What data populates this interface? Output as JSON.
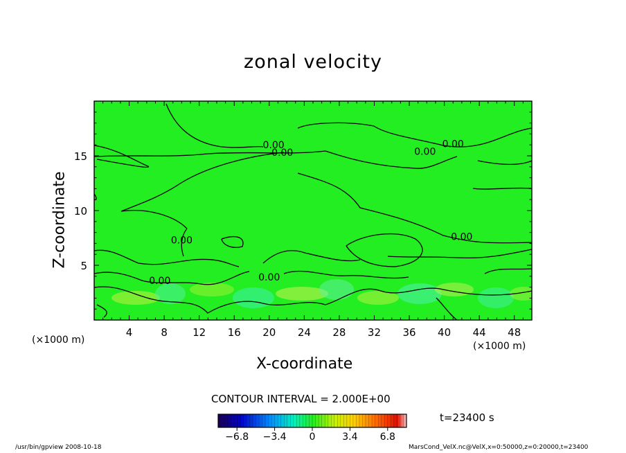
{
  "chart_data": {
    "type": "contour",
    "title": "zonal velocity",
    "xlabel": "X-coordinate",
    "ylabel": "Z-coordinate",
    "x_units": "(×1000 m)",
    "y_units": "(×1000 m)",
    "xlim": [
      0,
      50
    ],
    "ylim": [
      0,
      20
    ],
    "x_ticks": [
      4,
      8,
      12,
      16,
      20,
      24,
      28,
      32,
      36,
      40,
      44,
      48
    ],
    "y_ticks": [
      5,
      10,
      15
    ],
    "contour_labels": [
      {
        "text": "0.00",
        "x": 20.5,
        "y": 15.7
      },
      {
        "text": "0.00",
        "x": 21.5,
        "y": 15.0
      },
      {
        "text": "0.00",
        "x": 37.8,
        "y": 15.1
      },
      {
        "text": "0.00",
        "x": 41.0,
        "y": 15.8
      },
      {
        "text": "0.00",
        "x": 42.0,
        "y": 7.3
      },
      {
        "text": "0.00",
        "x": 10.0,
        "y": 7.0
      },
      {
        "text": "0.00",
        "x": 7.5,
        "y": 3.3
      },
      {
        "text": "0.00",
        "x": 20.0,
        "y": 3.6
      }
    ],
    "contour_interval": "CONTOUR INTERVAL = 2.000E+00",
    "time": "t=23400 s",
    "colorbar": {
      "range": [
        -8.5,
        8.5
      ],
      "tick_values": [
        -6.8,
        -3.4,
        0,
        3.4,
        6.8
      ],
      "tick_labels": [
        "−6.8",
        "−3.4",
        "0",
        "3.4",
        "6.8"
      ]
    },
    "background_color": "#22ee22"
  },
  "footer": {
    "left": "/usr/bin/gpview  2008-10-18",
    "right": "MarsCond_VelX.nc@VelX,x=0:50000,z=0:20000,t=23400"
  }
}
